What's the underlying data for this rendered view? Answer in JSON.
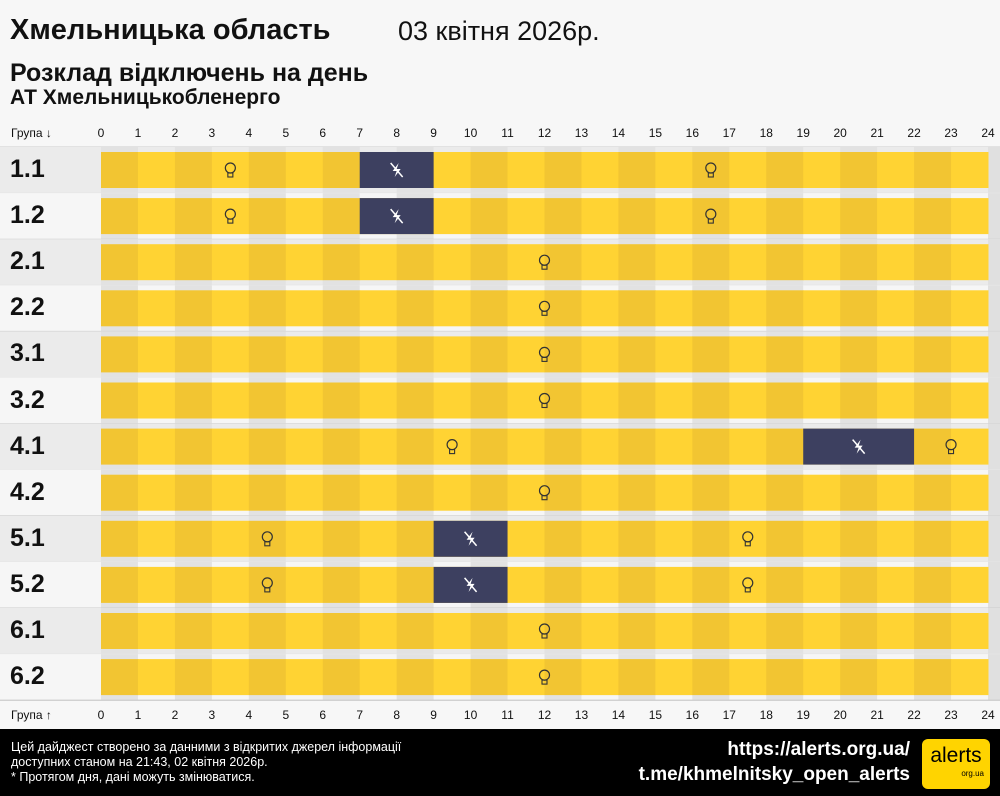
{
  "header": {
    "region": "Хмельницька область",
    "date": "03 квітня 2026р.",
    "subtitle": "Розклад відключень на день",
    "company": "АТ Хмельницькобленерго"
  },
  "colors": {
    "on_dark": "#f2c532",
    "on_light": "#ffd333",
    "off": "#3d4060"
  },
  "chart_data": {
    "type": "timeline",
    "x_label_top": "Група ↓",
    "x_label_bottom": "Група ↑",
    "xlim": [
      0,
      24
    ],
    "ticks": [
      "0",
      "1",
      "2",
      "3",
      "4",
      "5",
      "6",
      "7",
      "8",
      "9",
      "10",
      "11",
      "12",
      "13",
      "14",
      "15",
      "16",
      "17",
      "18",
      "19",
      "20",
      "21",
      "22",
      "23",
      "24"
    ],
    "groups": [
      {
        "name": "1.1",
        "off": [
          [
            7,
            9
          ]
        ]
      },
      {
        "name": "1.2",
        "off": [
          [
            7,
            9
          ]
        ]
      },
      {
        "name": "2.1",
        "off": []
      },
      {
        "name": "2.2",
        "off": []
      },
      {
        "name": "3.1",
        "off": []
      },
      {
        "name": "3.2",
        "off": []
      },
      {
        "name": "4.1",
        "off": [
          [
            19,
            22
          ]
        ]
      },
      {
        "name": "4.2",
        "off": []
      },
      {
        "name": "5.1",
        "off": [
          [
            9,
            11
          ]
        ]
      },
      {
        "name": "5.2",
        "off": [
          [
            9,
            11
          ]
        ]
      },
      {
        "name": "6.1",
        "off": []
      },
      {
        "name": "6.2",
        "off": []
      }
    ]
  },
  "footer": {
    "line1": "Цей дайджест створено за данними з відкритих джерел інформації",
    "line2": "доступних станом на 21:43, 02 квітня 2026р.",
    "line3": "* Протягом дня, дані можуть змінюватися.",
    "url": "https://alerts.org.ua/",
    "telegram": "t.me/khmelnitsky_open_alerts",
    "logo_text": "alerts",
    "logo_sub": "org.ua"
  }
}
